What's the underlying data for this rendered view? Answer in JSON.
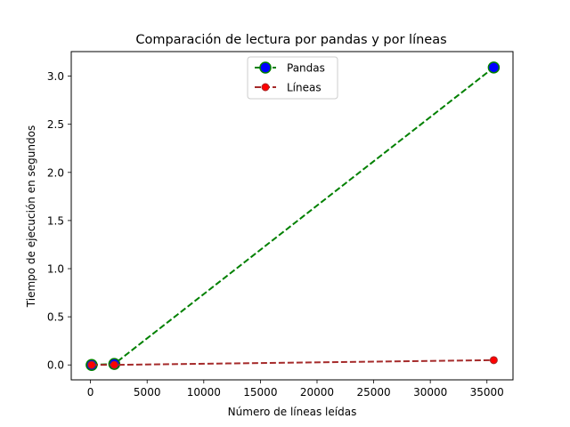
{
  "chart_data": {
    "type": "line",
    "title": "Comparación de lectura por pandas y por líneas",
    "xlabel": "Número de líneas leídas",
    "ylabel": "Tiempo de ejecución en segundos",
    "xlim": [
      -1700,
      37300
    ],
    "ylim": [
      -0.155,
      3.255
    ],
    "xticks": [
      0,
      5000,
      10000,
      15000,
      20000,
      25000,
      30000,
      35000
    ],
    "yticks": [
      0.0,
      0.5,
      1.0,
      1.5,
      2.0,
      2.5,
      3.0
    ],
    "xtick_labels": [
      "0",
      "5000",
      "10000",
      "15000",
      "20000",
      "25000",
      "30000",
      "35000"
    ],
    "ytick_labels": [
      "0.0",
      "0.5",
      "1.0",
      "1.5",
      "2.0",
      "2.5",
      "3.0"
    ],
    "grid": false,
    "legend_position": "top-center",
    "series": [
      {
        "name": "Pandas",
        "x": [
          100,
          2100,
          35600
        ],
        "y": [
          0.0,
          0.01,
          3.09
        ],
        "line_color": "#008000",
        "line_style": "dashed",
        "marker_face": "#0000ff",
        "marker_edge": "#008000",
        "marker_size": "large"
      },
      {
        "name": "Líneas",
        "x": [
          100,
          2100,
          35600
        ],
        "y": [
          0.0,
          0.001,
          0.05
        ],
        "line_color": "#a52a2a",
        "line_style": "dashed",
        "marker_face": "#ff0000",
        "marker_edge": "#a52a2a",
        "marker_size": "small"
      }
    ]
  }
}
